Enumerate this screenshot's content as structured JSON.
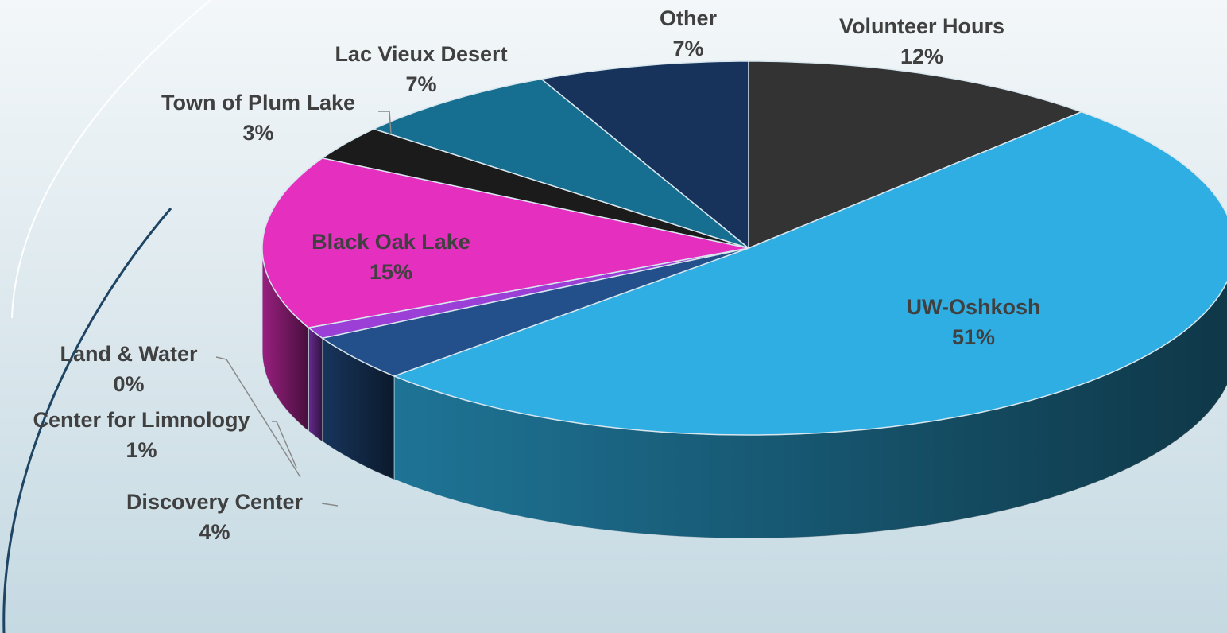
{
  "chart_data": {
    "type": "pie",
    "categories": [
      "Volunteer Hours",
      "UW-Oshkosh",
      "Discovery Center",
      "Center for Limnology",
      "Land & Water",
      "Black Oak Lake",
      "Town of Plum Lake",
      "Lac Vieux Desert",
      "Other"
    ],
    "values": [
      12,
      51,
      4,
      1,
      0,
      15,
      3,
      7,
      7
    ],
    "value_labels": [
      "12%",
      "51%",
      "4%",
      "1%",
      "0%",
      "15%",
      "3%",
      "7%",
      "7%"
    ],
    "colors": [
      "#333333",
      "#2eaee2",
      "#23508a",
      "#9b3fd6",
      "#c35ad8",
      "#e52fbf",
      "#1b1b1b",
      "#166f90",
      "#17335c"
    ]
  }
}
